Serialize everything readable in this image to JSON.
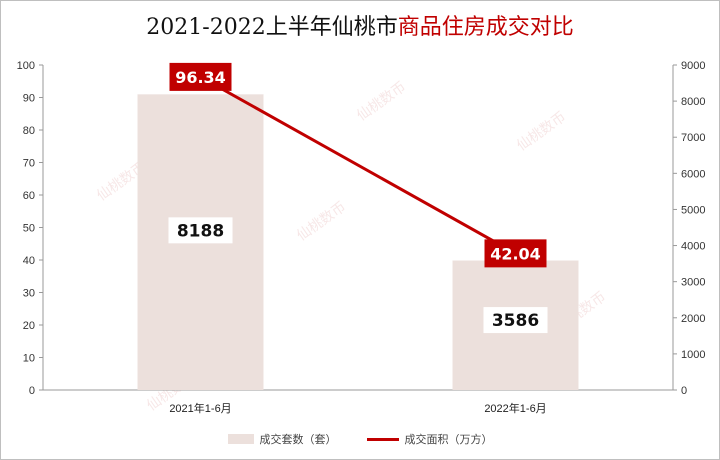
{
  "title": {
    "prefix": "2021-2022上半年仙桃市",
    "accent": "商品住房成交对比"
  },
  "watermark_text": "仙桃数币",
  "colors": {
    "bar": "#ece0dc",
    "line": "#c00000",
    "label_box": "#c00000",
    "axis": "#999999"
  },
  "legend": {
    "bar_label": "成交套数（套）",
    "line_label": "成交面积（万方）"
  },
  "chart_data": {
    "type": "bar",
    "categories": [
      "2021年1-6月",
      "2022年1-6月"
    ],
    "series": [
      {
        "name": "成交套数（套）",
        "type": "bar",
        "axis": "right",
        "values": [
          8188,
          3586
        ]
      },
      {
        "name": "成交面积（万方）",
        "type": "line",
        "axis": "left",
        "values": [
          96.34,
          42.04
        ]
      }
    ],
    "left_axis": {
      "ylim": [
        0,
        100
      ],
      "ticks": [
        0,
        10,
        20,
        30,
        40,
        50,
        60,
        70,
        80,
        90,
        100
      ]
    },
    "right_axis": {
      "ylim": [
        0,
        9000
      ],
      "ticks": [
        0,
        1000,
        2000,
        3000,
        4000,
        5000,
        6000,
        7000,
        8000,
        9000
      ]
    },
    "grid": false,
    "legend_position": "bottom"
  }
}
